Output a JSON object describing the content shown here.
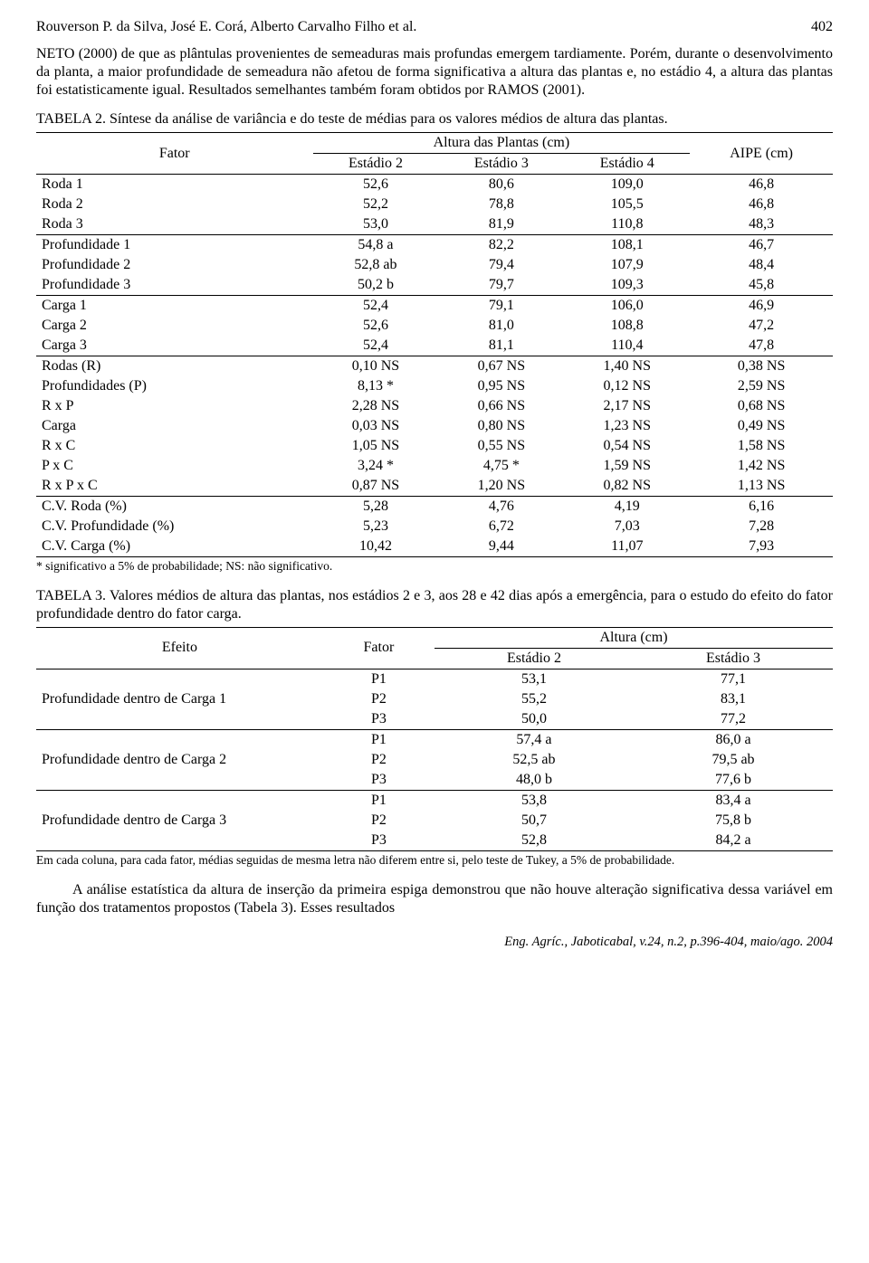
{
  "header": {
    "authors": "Rouverson P. da Silva, José E. Corá, Alberto Carvalho Filho et al.",
    "page": "402"
  },
  "para1": "NETO (2000) de que as plântulas provenientes de semeaduras mais profundas emergem tardiamente. Porém, durante o desenvolvimento da planta, a maior profundidade de semeadura não afetou de forma significativa a altura das plantas e, no estádio 4, a altura das plantas foi estatisticamente igual. Resultados semelhantes também foram obtidos por RAMOS (2001).",
  "table2": {
    "label": "TABELA 2.",
    "caption": "Síntese da análise de variância e do teste de médias para os valores médios de altura das plantas.",
    "col_fator": "Fator",
    "span_altura": "Altura das Plantas (cm)",
    "col_e2": "Estádio 2",
    "col_e3": "Estádio 3",
    "col_e4": "Estádio 4",
    "col_aipe": "AIPE (cm)",
    "groups": [
      [
        {
          "f": "Roda 1",
          "e2": "52,6",
          "e3": "80,6",
          "e4": "109,0",
          "a": "46,8"
        },
        {
          "f": "Roda 2",
          "e2": "52,2",
          "e3": "78,8",
          "e4": "105,5",
          "a": "46,8"
        },
        {
          "f": "Roda 3",
          "e2": "53,0",
          "e3": "81,9",
          "e4": "110,8",
          "a": "48,3"
        }
      ],
      [
        {
          "f": "Profundidade 1",
          "e2": "54,8 a",
          "e3": "82,2",
          "e4": "108,1",
          "a": "46,7"
        },
        {
          "f": "Profundidade 2",
          "e2": "52,8 ab",
          "e3": "79,4",
          "e4": "107,9",
          "a": "48,4"
        },
        {
          "f": "Profundidade 3",
          "e2": "50,2   b",
          "e3": "79,7",
          "e4": "109,3",
          "a": "45,8"
        }
      ],
      [
        {
          "f": "Carga 1",
          "e2": "52,4",
          "e3": "79,1",
          "e4": "106,0",
          "a": "46,9"
        },
        {
          "f": "Carga 2",
          "e2": "52,6",
          "e3": "81,0",
          "e4": "108,8",
          "a": "47,2"
        },
        {
          "f": "Carga 3",
          "e2": "52,4",
          "e3": "81,1",
          "e4": "110,4",
          "a": "47,8"
        }
      ],
      [
        {
          "f": "Rodas (R)",
          "e2": "0,10 NS",
          "e3": "0,67 NS",
          "e4": "1,40 NS",
          "a": "0,38 NS"
        },
        {
          "f": "Profundidades (P)",
          "e2": "8,13 *",
          "e3": "0,95 NS",
          "e4": "0,12 NS",
          "a": "2,59 NS"
        },
        {
          "f": "R x P",
          "e2": "2,28 NS",
          "e3": "0,66 NS",
          "e4": "2,17 NS",
          "a": "0,68 NS"
        },
        {
          "f": "Carga",
          "e2": "0,03 NS",
          "e3": "0,80 NS",
          "e4": "1,23 NS",
          "a": "0,49 NS"
        },
        {
          "f": "R x C",
          "e2": "1,05 NS",
          "e3": "0,55 NS",
          "e4": "0,54 NS",
          "a": "1,58 NS"
        },
        {
          "f": "P x C",
          "e2": "3,24 *",
          "e3": "4,75 *",
          "e4": "1,59 NS",
          "a": "1,42 NS"
        },
        {
          "f": "R x P x C",
          "e2": "0,87 NS",
          "e3": "1,20 NS",
          "e4": "0,82 NS",
          "a": "1,13 NS"
        }
      ],
      [
        {
          "f": "C.V. Roda (%)",
          "e2": "5,28",
          "e3": "4,76",
          "e4": "4,19",
          "a": "6,16"
        },
        {
          "f": "C.V. Profundidade (%)",
          "e2": "5,23",
          "e3": "6,72",
          "e4": "7,03",
          "a": "7,28"
        },
        {
          "f": "C.V. Carga (%)",
          "e2": "10,42",
          "e3": "9,44",
          "e4": "11,07",
          "a": "7,93"
        }
      ]
    ],
    "footnote": "* significativo a 5% de probabilidade; NS: não significativo."
  },
  "table3": {
    "label": "TABELA 3.",
    "caption": "Valores médios de altura das plantas, nos estádios 2 e 3, aos 28 e 42 dias após a emergência, para o estudo do efeito do fator profundidade dentro do fator carga.",
    "col_efeito": "Efeito",
    "col_fator": "Fator",
    "span_altura": "Altura (cm)",
    "col_e2": "Estádio 2",
    "col_e3": "Estádio 3",
    "groups": [
      {
        "efeito": "Profundidade dentro de Carga 1",
        "rows": [
          {
            "f": "P1",
            "e2": "53,1",
            "e3": "77,1"
          },
          {
            "f": "P2",
            "e2": "55,2",
            "e3": "83,1"
          },
          {
            "f": "P3",
            "e2": "50,0",
            "e3": "77,2"
          }
        ]
      },
      {
        "efeito": "Profundidade dentro de Carga 2",
        "rows": [
          {
            "f": "P1",
            "e2": "57,4 a",
            "e3": "86,0 a"
          },
          {
            "f": "P2",
            "e2": "52,5 ab",
            "e3": "79,5 ab"
          },
          {
            "f": "P3",
            "e2": "48,0   b",
            "e3": "77,6   b"
          }
        ]
      },
      {
        "efeito": "Profundidade dentro de Carga 3",
        "rows": [
          {
            "f": "P1",
            "e2": "53,8",
            "e3": "83,4 a"
          },
          {
            "f": "P2",
            "e2": "50,7",
            "e3": "75,8   b"
          },
          {
            "f": "P3",
            "e2": "52,8",
            "e3": "84,2 a"
          }
        ]
      }
    ],
    "footnote": "Em cada coluna, para cada fator, médias seguidas de mesma letra não diferem entre si, pelo teste de Tukey, a 5% de probabilidade."
  },
  "para2": "A análise estatística da altura de inserção da primeira espiga demonstrou que não houve alteração significativa dessa variável em função dos tratamentos propostos (Tabela 3). Esses resultados",
  "footer": "Eng. Agríc., Jaboticabal, v.24, n.2, p.396-404, maio/ago. 2004"
}
